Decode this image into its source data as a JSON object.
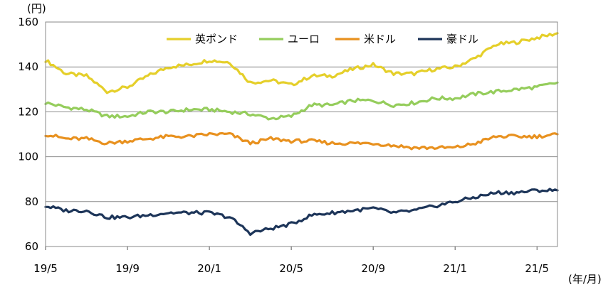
{
  "chart_data": {
    "type": "line",
    "y_unit": "(円)",
    "x_unit": "(年/月)",
    "ylim": [
      60,
      160
    ],
    "y_ticks": [
      "60",
      "80",
      "100",
      "120",
      "140",
      "160"
    ],
    "x_ticks": [
      "19/5",
      "19/9",
      "20/1",
      "20/5",
      "20/9",
      "21/1",
      "21/5"
    ],
    "grid": true,
    "legend_position": "top-right",
    "x": [
      "2019-05",
      "2019-06",
      "2019-07",
      "2019-08",
      "2019-09",
      "2019-10",
      "2019-11",
      "2019-12",
      "2020-01",
      "2020-02",
      "2020-03",
      "2020-04",
      "2020-05",
      "2020-06",
      "2020-07",
      "2020-08",
      "2020-09",
      "2020-10",
      "2020-11",
      "2020-12",
      "2021-01",
      "2021-02",
      "2021-03",
      "2021-04",
      "2021-05",
      "2021-06"
    ],
    "series": [
      {
        "name": "英ポンド",
        "color": "#e5cf2a",
        "values": [
          143,
          137,
          136,
          129,
          131,
          136,
          140,
          141,
          143,
          142,
          133,
          134,
          132,
          136,
          136,
          139,
          141,
          137,
          137,
          139,
          140,
          144,
          150,
          151,
          153,
          155
        ]
      },
      {
        "name": "ユーロ",
        "color": "#95cd5c",
        "values": [
          124,
          122,
          121,
          118,
          118,
          120,
          120,
          121,
          121,
          120,
          119,
          117,
          118,
          123,
          123,
          125,
          125,
          123,
          124,
          126,
          126,
          128,
          129,
          130,
          131,
          133
        ]
      },
      {
        "name": "米ドル",
        "color": "#e8911f",
        "values": [
          110,
          108,
          108,
          106,
          107,
          108,
          109,
          109,
          110,
          110,
          106,
          108,
          107,
          107,
          106,
          106,
          106,
          105,
          104,
          104,
          104,
          106,
          109,
          109,
          109,
          110
        ]
      },
      {
        "name": "豪ドル",
        "color": "#1d3559",
        "values": [
          78,
          76,
          76,
          73,
          73,
          74,
          75,
          75,
          75,
          73,
          66,
          68,
          70,
          74,
          75,
          76,
          77,
          75,
          76,
          78,
          80,
          82,
          84,
          84,
          85,
          85
        ]
      }
    ]
  }
}
